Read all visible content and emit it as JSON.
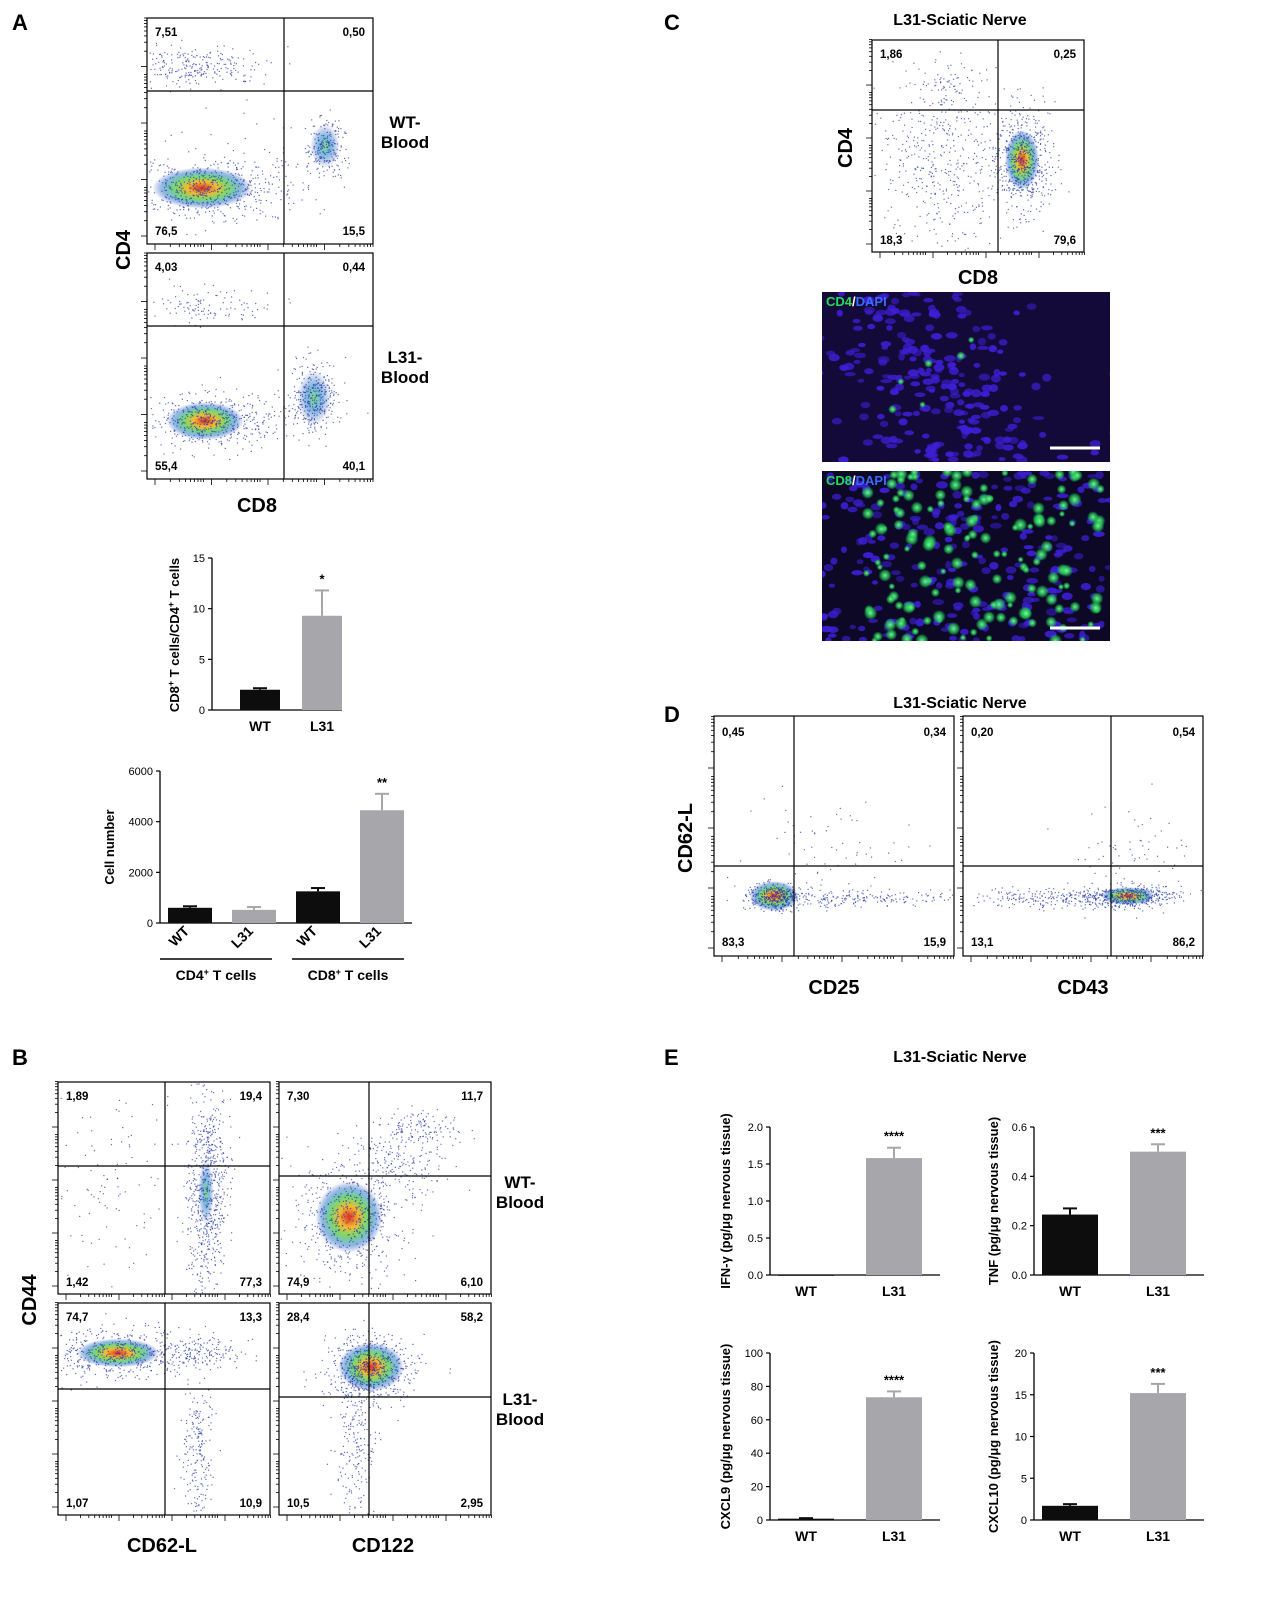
{
  "panel_labels": {
    "A": "A",
    "B": "B",
    "C": "C",
    "D": "D",
    "E": "E"
  },
  "colors": {
    "wt_bar": "#0d0d0d",
    "l31_bar": "#a7a7ab",
    "density_low": "#2b3ea8",
    "density_high": "#e32016",
    "dapi": "#3d1fd6",
    "marker": "#22dd55"
  },
  "panel_a": {
    "y_axis": "CD4",
    "x_axis": "CD8",
    "plots": [
      {
        "side_label_line1": "WT-",
        "side_label_line2": "Blood",
        "q_ul": "7,51",
        "q_ur": "0,50",
        "q_ll": "76,5",
        "q_lr": "15,5"
      },
      {
        "side_label_line1": "L31-",
        "side_label_line2": "Blood",
        "q_ul": "4,03",
        "q_ur": "0,44",
        "q_ll": "55,4",
        "q_lr": "40,1"
      }
    ],
    "ratio_chart": {
      "ylabel": "CD8+ T cells/CD4+ T cells",
      "ylabel_parts": [
        "CD8",
        "+",
        " T cells/CD4",
        "+",
        " T cells"
      ],
      "yticks": [
        "0",
        "5",
        "10",
        "15"
      ]
    },
    "count_chart": {
      "ylabel": "Cell number",
      "yticks": [
        "0",
        "2000",
        "4000",
        "6000"
      ],
      "group1_label": "CD4",
      "group2_label": "CD8",
      "group_sup": "+",
      "group_suffix": " T cells"
    }
  },
  "panel_b": {
    "y_axis": "CD44",
    "x_axes": [
      "CD62-L",
      "CD122"
    ],
    "side_labels": [
      {
        "line1": "WT-",
        "line2": "Blood"
      },
      {
        "line1": "L31-",
        "line2": "Blood"
      }
    ],
    "plots": [
      {
        "q_ul": "1,89",
        "q_ur": "19,4",
        "q_ll": "1,42",
        "q_lr": "77,3"
      },
      {
        "q_ul": "7,30",
        "q_ur": "11,7",
        "q_ll": "74,9",
        "q_lr": "6,10"
      },
      {
        "q_ul": "74,7",
        "q_ur": "13,3",
        "q_ll": "1,07",
        "q_lr": "10,9"
      },
      {
        "q_ul": "28,4",
        "q_ur": "58,2",
        "q_ll": "10,5",
        "q_lr": "2,95"
      }
    ]
  },
  "panel_c": {
    "title": "L31-Sciatic Nerve",
    "y_axis": "CD4",
    "x_axis": "CD8",
    "plot": {
      "q_ul": "1,86",
      "q_ur": "0,25",
      "q_ll": "18,3",
      "q_lr": "79,6"
    },
    "micrographs": [
      {
        "marker": "CD4",
        "sep": "/",
        "stain": "DAPI"
      },
      {
        "marker": "CD8",
        "sep": "/",
        "stain": "DAPI"
      }
    ]
  },
  "panel_d": {
    "title": "L31-Sciatic Nerve",
    "y_axis": "CD62-L",
    "x_axes": [
      "CD25",
      "CD43"
    ],
    "plots": [
      {
        "q_ul": "0,45",
        "q_ur": "0,34",
        "q_ll": "83,3",
        "q_lr": "15,9"
      },
      {
        "q_ul": "0,20",
        "q_ur": "0,54",
        "q_ll": "13,1",
        "q_lr": "86,2"
      }
    ]
  },
  "panel_e": {
    "title": "L31-Sciatic Nerve"
  },
  "chart_data": [
    {
      "type": "bar",
      "id": "ratio",
      "categories": [
        "WT",
        "L31"
      ],
      "values": [
        2.0,
        9.3
      ],
      "errors": [
        0.15,
        2.5
      ],
      "significance": [
        "",
        "*"
      ],
      "ylabel": "CD8+ T cells/CD4+ T cells",
      "ylim": [
        0,
        15
      ],
      "yticks": [
        0,
        5,
        10,
        15
      ]
    },
    {
      "type": "bar",
      "id": "cell_number",
      "categories": [
        "WT",
        "L31",
        "WT",
        "L31"
      ],
      "groups": [
        "CD4+ T cells",
        "CD4+ T cells",
        "CD8+ T cells",
        "CD8+ T cells"
      ],
      "values": [
        600,
        520,
        1250,
        4450
      ],
      "errors": [
        60,
        110,
        130,
        650
      ],
      "significance": [
        "",
        "",
        "",
        "**"
      ],
      "ylabel": "Cell number",
      "ylim": [
        0,
        6000
      ],
      "yticks": [
        0,
        2000,
        4000,
        6000
      ]
    },
    {
      "type": "bar",
      "id": "ifng",
      "categories": [
        "WT",
        "L31"
      ],
      "values": [
        0,
        1.58
      ],
      "errors": [
        0,
        0.14
      ],
      "significance": [
        "",
        "****"
      ],
      "ylabel": "IFN-γ (pg/μg nervous tissue)",
      "ylim": [
        0,
        2.0
      ],
      "yticks": [
        "0.0",
        "0.5",
        "1.0",
        "1.5",
        "2.0"
      ]
    },
    {
      "type": "bar",
      "id": "tnf",
      "categories": [
        "WT",
        "L31"
      ],
      "values": [
        0.245,
        0.5
      ],
      "errors": [
        0.025,
        0.03
      ],
      "significance": [
        "",
        "***"
      ],
      "ylabel": "TNF (pg/μg nervous tissue)",
      "ylim": [
        0,
        0.6
      ],
      "yticks": [
        "0.0",
        "0.2",
        "0.4",
        "0.6"
      ]
    },
    {
      "type": "bar",
      "id": "cxcl9",
      "categories": [
        "WT",
        "L31"
      ],
      "values": [
        0.8,
        73.5
      ],
      "errors": [
        0.3,
        3.5
      ],
      "significance": [
        "",
        "****"
      ],
      "ylabel": "CXCL9 (pg/μg nervous tissue)",
      "ylim": [
        0,
        100
      ],
      "yticks": [
        "0",
        "20",
        "40",
        "60",
        "80",
        "100"
      ]
    },
    {
      "type": "bar",
      "id": "cxcl10",
      "categories": [
        "WT",
        "L31"
      ],
      "values": [
        1.7,
        15.2
      ],
      "errors": [
        0.2,
        1.1
      ],
      "significance": [
        "",
        "***"
      ],
      "ylabel": "CXCL10 (pg/μg nervous tissue)",
      "ylim": [
        0,
        20
      ],
      "yticks": [
        "0",
        "5",
        "10",
        "15",
        "20"
      ]
    }
  ]
}
